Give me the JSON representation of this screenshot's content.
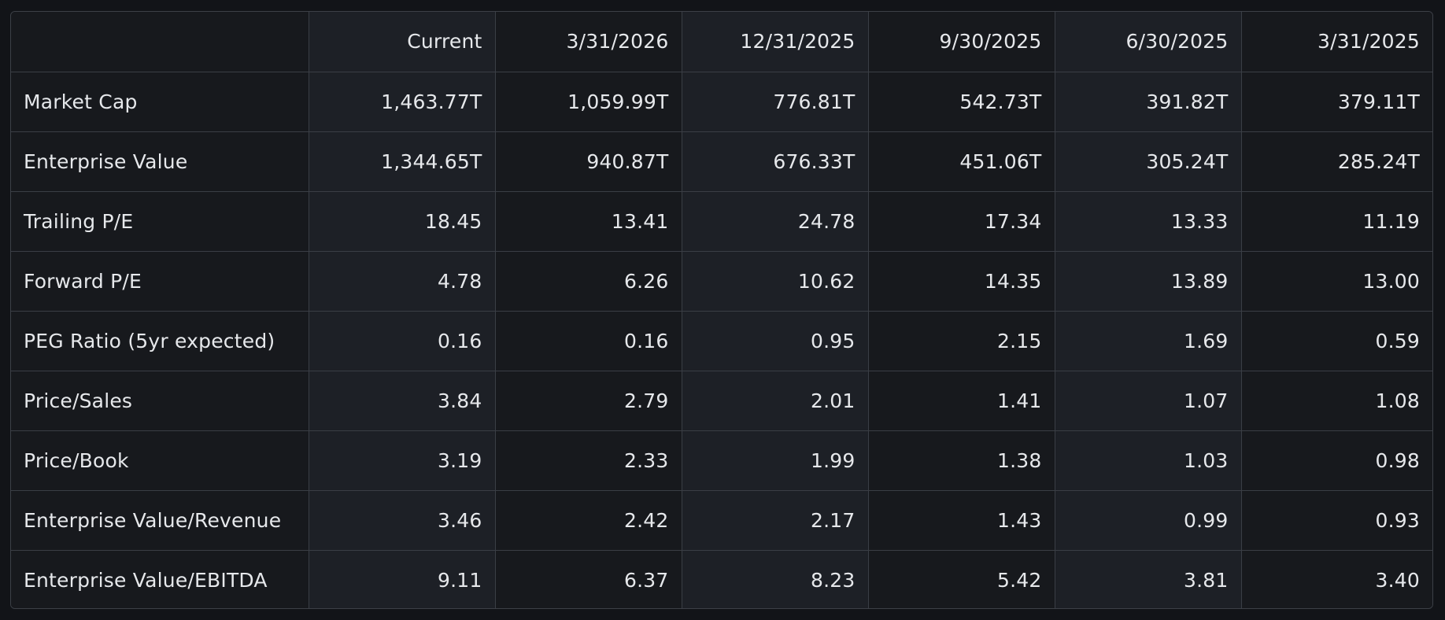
{
  "table": {
    "headers": [
      "",
      "Current",
      "3/31/2026",
      "12/31/2025",
      "9/30/2025",
      "6/30/2025",
      "3/31/2025"
    ],
    "rows": [
      {
        "label": "Market Cap",
        "values": [
          "1,463.77T",
          "1,059.99T",
          "776.81T",
          "542.73T",
          "391.82T",
          "379.11T"
        ]
      },
      {
        "label": "Enterprise Value",
        "values": [
          "1,344.65T",
          "940.87T",
          "676.33T",
          "451.06T",
          "305.24T",
          "285.24T"
        ]
      },
      {
        "label": "Trailing P/E",
        "values": [
          "18.45",
          "13.41",
          "24.78",
          "17.34",
          "13.33",
          "11.19"
        ]
      },
      {
        "label": "Forward P/E",
        "values": [
          "4.78",
          "6.26",
          "10.62",
          "14.35",
          "13.89",
          "13.00"
        ]
      },
      {
        "label": "PEG Ratio (5yr expected)",
        "values": [
          "0.16",
          "0.16",
          "0.95",
          "2.15",
          "1.69",
          "0.59"
        ]
      },
      {
        "label": "Price/Sales",
        "values": [
          "3.84",
          "2.79",
          "2.01",
          "1.41",
          "1.07",
          "1.08"
        ]
      },
      {
        "label": "Price/Book",
        "values": [
          "3.19",
          "2.33",
          "1.99",
          "1.38",
          "1.03",
          "0.98"
        ]
      },
      {
        "label": "Enterprise Value/Revenue",
        "values": [
          "3.46",
          "2.42",
          "2.17",
          "1.43",
          "0.99",
          "0.93"
        ]
      },
      {
        "label": "Enterprise Value/EBITDA",
        "values": [
          "9.11",
          "6.37",
          "8.23",
          "5.42",
          "3.81",
          "3.40"
        ]
      }
    ]
  },
  "colors": {
    "background": "#121418",
    "cell_dark": "#17191d",
    "cell_light": "#1d2026",
    "border": "#3a3e45",
    "text": "#e6e8eb"
  }
}
